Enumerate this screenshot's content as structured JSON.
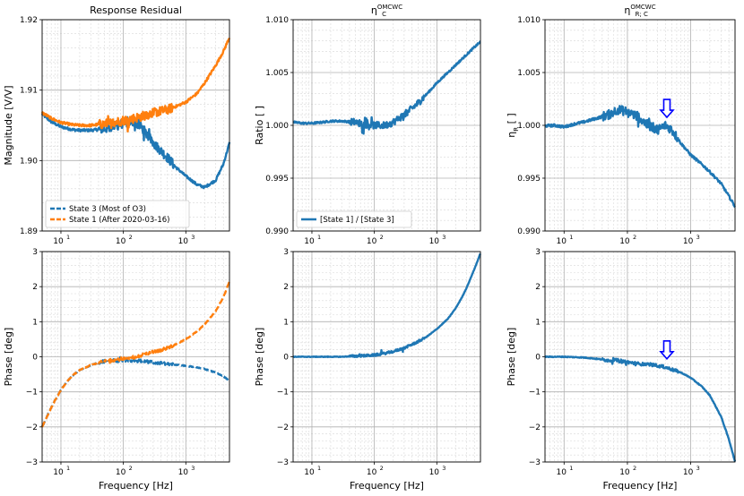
{
  "colors": {
    "state3": "#1f77b4",
    "state1": "#ff7f0e",
    "arrow": "#0000ff",
    "grid_major": "#b0b0b0",
    "grid_minor": "#d8d8d8"
  },
  "chart_data": [
    {
      "id": "p00",
      "type": "line",
      "title": "Response Residual",
      "title_sub": "",
      "xlabel": "",
      "ylabel": "Magnitude [V/V]",
      "xscale": "log",
      "xlim": [
        5,
        5000
      ],
      "ylim": [
        1.89,
        1.92
      ],
      "yticks": [
        "1.89",
        "1.90",
        "1.91",
        "1.92"
      ],
      "legend": {
        "loc": "lower-left",
        "entries": [
          "State 3 (Most of O3)",
          "State 1 (After 2020-03-16)"
        ]
      },
      "series": [
        {
          "name": "State 3 (Most of O3)",
          "color": "#1f77b4",
          "style": "solid",
          "noise": 0.0003,
          "x": [
            5,
            7,
            10,
            15,
            20,
            30,
            50,
            70,
            100,
            150,
            200,
            300,
            500,
            700,
            1000,
            1500,
            2000,
            3000,
            4000,
            5000
          ],
          "y": [
            1.9066,
            1.9055,
            1.9048,
            1.9044,
            1.9043,
            1.9043,
            1.9045,
            1.9048,
            1.9053,
            1.9055,
            1.9046,
            1.9025,
            1.9005,
            1.899,
            1.8978,
            1.8966,
            1.8962,
            1.8972,
            1.8995,
            1.9025
          ]
        },
        {
          "name": "State 1 (After 2020-03-16)",
          "color": "#ff7f0e",
          "style": "solid",
          "noise": 0.0003,
          "x": [
            5,
            7,
            10,
            15,
            20,
            30,
            50,
            70,
            100,
            150,
            200,
            300,
            500,
            700,
            1000,
            1500,
            2000,
            3000,
            4000,
            5000
          ],
          "y": [
            1.9068,
            1.906,
            1.9054,
            1.9051,
            1.905,
            1.905,
            1.9052,
            1.9054,
            1.9057,
            1.906,
            1.9063,
            1.9068,
            1.9072,
            1.9077,
            1.9083,
            1.9095,
            1.911,
            1.9135,
            1.9155,
            1.9175
          ]
        }
      ],
      "arrow_x": null
    },
    {
      "id": "p01",
      "type": "line",
      "title": "η",
      "title_sub": "C",
      "title_sup": "OMCWC",
      "xlabel": "",
      "ylabel": "Ratio [ ]",
      "xscale": "log",
      "xlim": [
        5,
        5000
      ],
      "ylim": [
        0.99,
        1.01
      ],
      "yticks": [
        "0.990",
        "0.995",
        "1.000",
        "1.005",
        "1.010"
      ],
      "legend": {
        "loc": "lower-left",
        "entries": [
          "[State 1] / [State 3]"
        ]
      },
      "series": [
        {
          "name": "[State 1] / [State 3]",
          "color": "#1f77b4",
          "style": "solid",
          "noise": 0.00015,
          "x": [
            5,
            7,
            10,
            15,
            20,
            30,
            50,
            70,
            100,
            150,
            200,
            300,
            400,
            500,
            700,
            1000,
            1500,
            2000,
            3000,
            4000,
            5000
          ],
          "y": [
            1.0003,
            1.0002,
            1.0002,
            1.0003,
            1.0004,
            1.0004,
            1.0003,
            1.0001,
            1.0,
            1.0,
            1.0003,
            1.001,
            1.0016,
            1.0021,
            1.003,
            1.004,
            1.005,
            1.0057,
            1.0067,
            1.0074,
            1.0079
          ]
        }
      ],
      "arrow_x": null
    },
    {
      "id": "p02",
      "type": "line",
      "title": "η",
      "title_sub": "R; C",
      "title_sup": "OMCWC",
      "xlabel": "",
      "ylabel": "η_R [ ]",
      "xscale": "log",
      "xlim": [
        5,
        5000
      ],
      "ylim": [
        0.99,
        1.01
      ],
      "yticks": [
        "0.990",
        "0.995",
        "1.000",
        "1.005",
        "1.010"
      ],
      "legend": null,
      "series": [
        {
          "name": "η_R;C",
          "color": "#1f77b4",
          "style": "solid",
          "noise": 0.0002,
          "x": [
            5,
            7,
            10,
            15,
            20,
            30,
            50,
            70,
            100,
            150,
            200,
            300,
            400,
            500,
            700,
            1000,
            1500,
            2000,
            3000,
            4000,
            5000
          ],
          "y": [
            0.99995,
            1.0,
            0.99985,
            1.00015,
            1.0003,
            1.0006,
            1.001,
            1.0015,
            1.0013,
            1.0008,
            1.0001,
            0.9996,
            1.0,
            0.9996,
            0.9983,
            0.9972,
            0.9963,
            0.9956,
            0.9945,
            0.9933,
            0.9923
          ]
        }
      ],
      "arrow_x": 420
    },
    {
      "id": "p10",
      "type": "line",
      "title": "",
      "title_sub": "",
      "xlabel": "Frequency [Hz]",
      "ylabel": "Phase [deg]",
      "xscale": "log",
      "xlim": [
        5,
        5000
      ],
      "ylim": [
        -3,
        3
      ],
      "yticks": [
        "−3",
        "−2",
        "−1",
        "0",
        "1",
        "2",
        "3"
      ],
      "legend": null,
      "series": [
        {
          "name": "State 3 (Most of O3)",
          "color": "#1f77b4",
          "style": "dashed",
          "noise": 0.02,
          "x": [
            5,
            6,
            7,
            8,
            10,
            12,
            15,
            20,
            30,
            40,
            50,
            70,
            100,
            150,
            200,
            300,
            500,
            700,
            1000,
            1500,
            2000,
            3000,
            4000,
            5000
          ],
          "y": [
            -2.0,
            -1.7,
            -1.45,
            -1.25,
            -0.95,
            -0.75,
            -0.55,
            -0.38,
            -0.24,
            -0.17,
            -0.13,
            -0.11,
            -0.1,
            -0.11,
            -0.13,
            -0.16,
            -0.2,
            -0.23,
            -0.26,
            -0.3,
            -0.35,
            -0.45,
            -0.56,
            -0.68
          ]
        },
        {
          "name": "State 1 (After 2020-03-16)",
          "color": "#ff7f0e",
          "style": "dashed",
          "noise": 0.02,
          "x": [
            5,
            6,
            7,
            8,
            10,
            12,
            15,
            20,
            30,
            40,
            50,
            70,
            100,
            150,
            200,
            300,
            500,
            700,
            1000,
            1500,
            2000,
            3000,
            4000,
            5000
          ],
          "y": [
            -2.0,
            -1.7,
            -1.45,
            -1.25,
            -0.95,
            -0.75,
            -0.55,
            -0.38,
            -0.24,
            -0.17,
            -0.13,
            -0.09,
            -0.05,
            0.0,
            0.05,
            0.13,
            0.25,
            0.36,
            0.5,
            0.72,
            0.92,
            1.3,
            1.7,
            2.15
          ]
        }
      ],
      "arrow_x": null
    },
    {
      "id": "p11",
      "type": "line",
      "title": "",
      "title_sub": "",
      "xlabel": "Frequency [Hz]",
      "ylabel": "Phase [deg]",
      "xscale": "log",
      "xlim": [
        5,
        5000
      ],
      "ylim": [
        -3,
        3
      ],
      "yticks": [
        "−3",
        "−2",
        "−1",
        "0",
        "1",
        "2",
        "3"
      ],
      "legend": null,
      "series": [
        {
          "name": "[State 1] / [State 3]",
          "color": "#1f77b4",
          "style": "solid",
          "noise": 0.015,
          "x": [
            5,
            10,
            20,
            30,
            50,
            70,
            100,
            150,
            200,
            300,
            500,
            700,
            1000,
            1500,
            2000,
            2500,
            3000,
            4000,
            5000
          ],
          "y": [
            0.0,
            0.0,
            0.0,
            0.0,
            0.02,
            0.03,
            0.05,
            0.1,
            0.15,
            0.25,
            0.43,
            0.58,
            0.79,
            1.08,
            1.38,
            1.68,
            1.97,
            2.5,
            2.95
          ]
        }
      ],
      "arrow_x": null
    },
    {
      "id": "p12",
      "type": "line",
      "title": "",
      "title_sub": "",
      "xlabel": "Frequency [Hz]",
      "ylabel": "Phase [deg]",
      "xscale": "log",
      "xlim": [
        5,
        5000
      ],
      "ylim": [
        -3,
        3
      ],
      "yticks": [
        "−3",
        "−2",
        "−1",
        "0",
        "1",
        "2",
        "3"
      ],
      "legend": null,
      "series": [
        {
          "name": "η_R;C phase",
          "color": "#1f77b4",
          "style": "solid",
          "noise": 0.02,
          "x": [
            5,
            10,
            20,
            30,
            50,
            70,
            100,
            150,
            200,
            300,
            400,
            500,
            700,
            1000,
            1500,
            2000,
            3000,
            4000,
            5000
          ],
          "y": [
            0.0,
            0.0,
            -0.02,
            -0.05,
            -0.1,
            -0.1,
            -0.15,
            -0.2,
            -0.22,
            -0.25,
            -0.3,
            -0.36,
            -0.45,
            -0.6,
            -0.85,
            -1.1,
            -1.7,
            -2.35,
            -3.0
          ]
        }
      ],
      "arrow_x": 420
    }
  ],
  "xtick_labels": {
    "10": "10",
    "100": "10",
    "1000": "10",
    "exp10": "1",
    "exp100": "2",
    "exp1000": "3"
  }
}
